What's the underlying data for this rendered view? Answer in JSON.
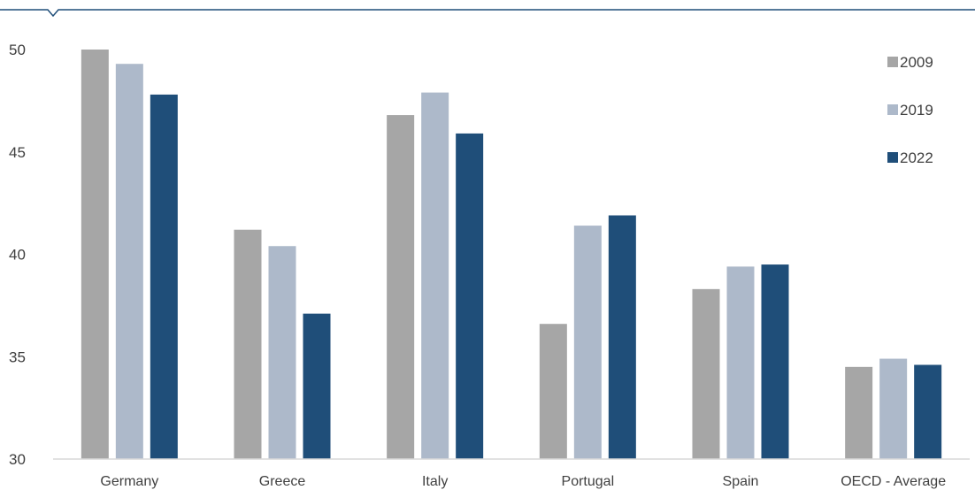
{
  "chart_data": {
    "type": "bar",
    "categories": [
      "Germany",
      "Greece",
      "Italy",
      "Portugal",
      "Spain",
      "OECD - Average"
    ],
    "series": [
      {
        "name": "2009",
        "values": [
          50.0,
          41.2,
          46.8,
          36.6,
          38.3,
          34.5
        ]
      },
      {
        "name": "2019",
        "values": [
          49.3,
          40.4,
          47.9,
          41.4,
          39.4,
          34.9
        ]
      },
      {
        "name": "2022",
        "values": [
          47.8,
          37.1,
          45.9,
          41.9,
          39.5,
          34.6
        ]
      }
    ],
    "title": "",
    "xlabel": "",
    "ylabel": "",
    "ylim": [
      30,
      50
    ],
    "yticks": [
      "50",
      "45",
      "40",
      "35",
      "30"
    ],
    "legend_position": "top-right",
    "grid": false,
    "colors": {
      "2009": "#a6a6a6",
      "2019": "#adb9ca",
      "2022": "#1f4e79",
      "frame": "#1f4e79",
      "axis": "#d9d9d9",
      "text": "#404040"
    }
  }
}
